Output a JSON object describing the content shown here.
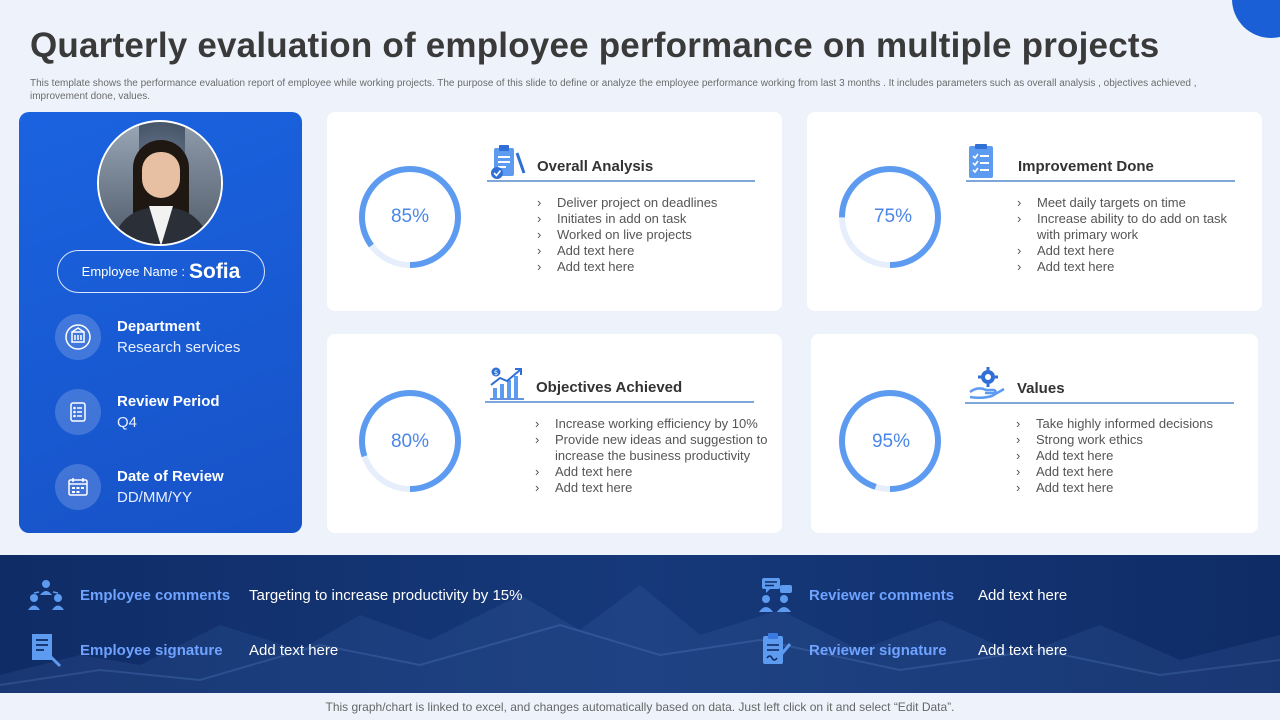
{
  "header": {
    "title": "Quarterly evaluation of employee performance on multiple projects",
    "subtitle": "This template shows the performance evaluation report of employee while working projects. The purpose of this slide to define or analyze the employee performance working from last 3 months . It includes parameters such as overall analysis , objectives achieved , improvement done, values."
  },
  "profile": {
    "name_label": "Employee Name :",
    "name_value": "Sofia",
    "department_label": "Department",
    "department_value": "Research services",
    "review_period_label": "Review Period",
    "review_period_value": "Q4",
    "date_label": "Date of Review",
    "date_value": "DD/MM/YY"
  },
  "cards": [
    {
      "title": "Overall Analysis",
      "percent": 85,
      "percent_label": "85%",
      "icon": "clipboard-check-icon",
      "bullets": [
        "Deliver project on deadlines",
        "Initiates in add on task",
        "Worked on live projects",
        "Add text here",
        "Add text here"
      ]
    },
    {
      "title": "Improvement Done",
      "percent": 75,
      "percent_label": "75%",
      "icon": "checklist-icon",
      "bullets": [
        "Meet daily targets on time",
        "Increase ability to do add on task with primary work",
        "Add text here",
        "Add text here"
      ]
    },
    {
      "title": "Objectives Achieved",
      "percent": 80,
      "percent_label": "80%",
      "icon": "growth-chart-icon",
      "bullets": [
        "Increase working efficiency by 10%",
        "Provide new ideas and suggestion to increase the business productivity",
        "Add text here",
        "Add text here"
      ]
    },
    {
      "title": "Values",
      "percent": 95,
      "percent_label": "95%",
      "icon": "hand-gear-icon",
      "bullets": [
        "Take highly informed decisions",
        "Strong work ethics",
        "Add text here",
        "Add text here",
        "Add text here"
      ]
    }
  ],
  "colors": {
    "accent": "#1a63e0",
    "donut": "#5d9bf0",
    "donut_track": "#e6eefb",
    "band": "#0f2c66",
    "band_label": "#6fa3ff"
  },
  "band": {
    "employee_comments_label": "Employee comments",
    "employee_comments_value": "Targeting to increase productivity by 15%",
    "employee_signature_label": "Employee signature",
    "employee_signature_value": "Add text here",
    "reviewer_comments_label": "Reviewer comments",
    "reviewer_comments_value": "Add text here",
    "reviewer_signature_label": "Reviewer signature",
    "reviewer_signature_value": "Add text here"
  },
  "footer": {
    "note": "This graph/chart is linked to excel, and changes automatically based on data. Just left click on it and select “Edit Data”."
  }
}
